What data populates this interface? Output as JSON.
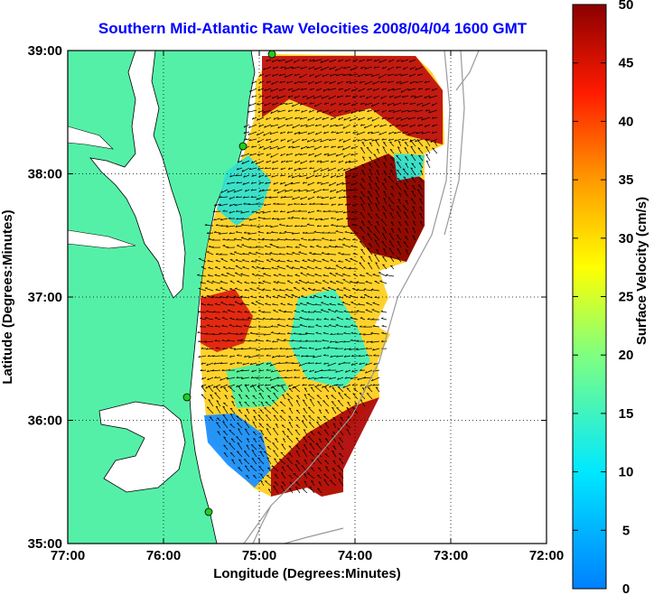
{
  "title": "Southern Mid-Atlantic Raw Velocities 2008/04/04 1600 GMT",
  "map": {
    "x_axis_label": "Longitude (Degrees:Minutes)",
    "y_axis_label": "Latitude (Degrees:Minutes)",
    "x_ticks": [
      "77:00",
      "76:00",
      "75:00",
      "74:00",
      "73:00",
      "72:00"
    ],
    "y_ticks": [
      "39:00",
      "38:00",
      "37:00",
      "36:00",
      "35:00"
    ],
    "lon_range": [
      -77,
      -72
    ],
    "lat_range": [
      35,
      39
    ],
    "grid": "dotted",
    "land_color": "#55f0a8",
    "water_color": "#ffffff",
    "coastline_color": "#000000",
    "station_color": "#22cc22"
  },
  "colorbar": {
    "label": "Surface Velocity (cm/s)",
    "ticks": [
      "0",
      "5",
      "10",
      "15",
      "20",
      "25",
      "30",
      "35",
      "40",
      "45",
      "50"
    ],
    "range": [
      0,
      50
    ],
    "colormap": "jet"
  }
}
